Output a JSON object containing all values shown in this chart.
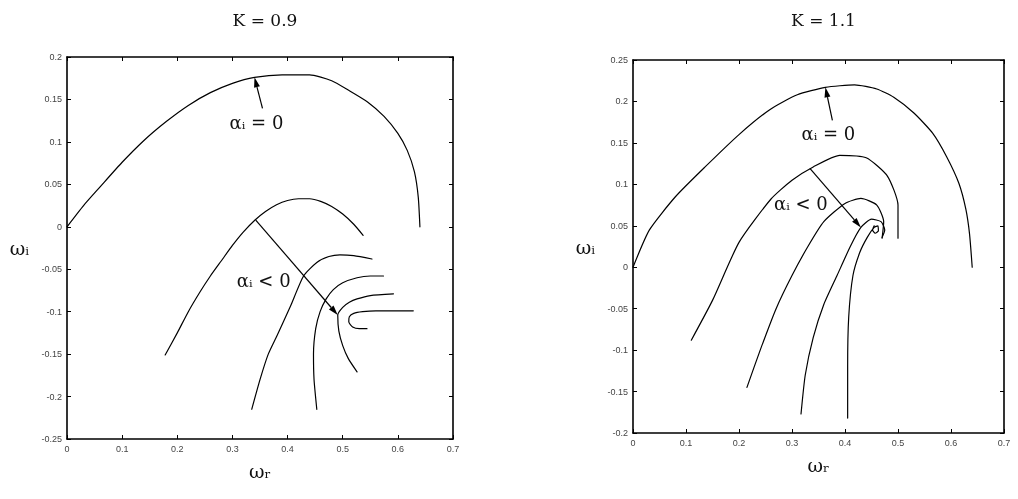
{
  "chart_data": [
    {
      "type": "line",
      "title": "K = 0.9",
      "xlabel": "ωᵣ",
      "ylabel": "ωᵢ",
      "xlim": [
        0,
        0.7
      ],
      "ylim": [
        -0.25,
        0.2
      ],
      "xticks": [
        0,
        0.1,
        0.2,
        0.3,
        0.4,
        0.5,
        0.6,
        0.7
      ],
      "yticks": [
        -0.25,
        -0.2,
        -0.15,
        -0.1,
        -0.05,
        0,
        0.05,
        0.1,
        0.15,
        0.2
      ],
      "series": [
        {
          "color": "#000000",
          "x": [
            0,
            0.03,
            0.06,
            0.1,
            0.14,
            0.18,
            0.22,
            0.26,
            0.3,
            0.34,
            0.39,
            0.44,
            0.48,
            0.51,
            0.545,
            0.575,
            0.6,
            0.617,
            0.63,
            0.637,
            0.64
          ],
          "values": [
            0,
            0.025,
            0.047,
            0.076,
            0.102,
            0.124,
            0.143,
            0.158,
            0.169,
            0.176,
            0.179,
            0.179,
            0.172,
            0.161,
            0.147,
            0.13,
            0.11,
            0.09,
            0.065,
            0.035,
            0
          ]
        },
        {
          "color": "#000000",
          "x": [
            0.178,
            0.2,
            0.22,
            0.24,
            0.26,
            0.28,
            0.3,
            0.32,
            0.341,
            0.36,
            0.38,
            0.4,
            0.42,
            0.44,
            0.46,
            0.48,
            0.5,
            0.52,
            0.537
          ],
          "values": [
            -0.151,
            -0.125,
            -0.1,
            -0.078,
            -0.058,
            -0.04,
            -0.022,
            -0.006,
            0.008,
            0.018,
            0.026,
            0.031,
            0.033,
            0.033,
            0.03,
            0.024,
            0.015,
            0.003,
            -0.01
          ]
        },
        {
          "color": "#000000",
          "x": [
            0.335,
            0.35,
            0.365,
            0.381,
            0.405,
            0.429,
            0.453,
            0.475,
            0.495,
            0.52,
            0.553
          ],
          "values": [
            -0.215,
            -0.18,
            -0.15,
            -0.128,
            -0.094,
            -0.058,
            -0.042,
            -0.035,
            -0.033,
            -0.034,
            -0.038
          ]
        },
        {
          "color": "#000000",
          "x": [
            0.453,
            0.448,
            0.447,
            0.451,
            0.459,
            0.47,
            0.483,
            0.5,
            0.526,
            0.55,
            0.574
          ],
          "values": [
            -0.215,
            -0.18,
            -0.15,
            -0.12,
            -0.1,
            -0.085,
            -0.074,
            -0.066,
            -0.06,
            -0.058,
            -0.058
          ]
        },
        {
          "color": "#000000",
          "x": [
            0.526,
            0.51,
            0.5,
            0.493,
            0.491,
            0.5,
            0.512,
            0.526,
            0.55,
            0.592
          ],
          "values": [
            -0.171,
            -0.155,
            -0.14,
            -0.123,
            -0.104,
            -0.095,
            -0.089,
            -0.085,
            -0.081,
            -0.079
          ]
        },
        {
          "color": "#000000",
          "x": [
            0.544,
            0.53,
            0.518,
            0.511,
            0.512,
            0.52,
            0.536,
            0.56,
            0.628
          ],
          "values": [
            -0.12,
            -0.12,
            -0.118,
            -0.112,
            -0.106,
            -0.102,
            -0.1,
            -0.099,
            -0.099
          ]
        }
      ],
      "annotations": [
        {
          "text": "αᵢ = 0",
          "x": 0.34,
          "y": 0.176
        },
        {
          "text": "αᵢ < 0",
          "x": 0.491,
          "y": -0.104
        }
      ]
    },
    {
      "type": "line",
      "title": "K = 1.1",
      "xlabel": "ωᵣ",
      "ylabel": "ωᵢ",
      "xlim": [
        0,
        0.7
      ],
      "ylim": [
        -0.2,
        0.25
      ],
      "xticks": [
        0,
        0.1,
        0.2,
        0.3,
        0.4,
        0.5,
        0.6,
        0.7
      ],
      "yticks": [
        -0.2,
        -0.15,
        -0.1,
        -0.05,
        0,
        0.05,
        0.1,
        0.15,
        0.2,
        0.25
      ],
      "series": [
        {
          "color": "#000000",
          "x": [
            0,
            0.031,
            0.08,
            0.136,
            0.2,
            0.258,
            0.31,
            0.363,
            0.418,
            0.46,
            0.492,
            0.53,
            0.565,
            0.592,
            0.615,
            0.628,
            0.635,
            0.64
          ],
          "values": [
            0,
            0.045,
            0.085,
            0.121,
            0.16,
            0.19,
            0.208,
            0.217,
            0.22,
            0.215,
            0.205,
            0.186,
            0.162,
            0.133,
            0.101,
            0.07,
            0.04,
            0
          ]
        },
        {
          "color": "#000000",
          "x": [
            0.11,
            0.15,
            0.2,
            0.26,
            0.3,
            0.34,
            0.39,
            0.44,
            0.48,
            0.5,
            0.5
          ],
          "values": [
            -0.088,
            -0.04,
            0.03,
            0.082,
            0.105,
            0.121,
            0.135,
            0.132,
            0.11,
            0.075,
            0.035
          ]
        },
        {
          "color": "#000000",
          "x": [
            0.215,
            0.24,
            0.27,
            0.3,
            0.33,
            0.36,
            0.4,
            0.43,
            0.46,
            0.473,
            0.47
          ],
          "values": [
            -0.145,
            -0.1,
            -0.05,
            -0.01,
            0.025,
            0.055,
            0.077,
            0.083,
            0.075,
            0.055,
            0.035
          ]
        },
        {
          "color": "#000000",
          "x": [
            0.317,
            0.325,
            0.34,
            0.36,
            0.385,
            0.41,
            0.43,
            0.45,
            0.468,
            0.475,
            0.47
          ],
          "values": [
            -0.177,
            -0.13,
            -0.085,
            -0.045,
            -0.01,
            0.025,
            0.048,
            0.058,
            0.055,
            0.045,
            0.036
          ]
        },
        {
          "color": "#000000",
          "x": [
            0.405,
            0.405,
            0.407,
            0.415,
            0.428,
            0.442,
            0.455,
            0.462,
            0.463,
            0.457,
            0.452,
            0.455
          ],
          "values": [
            -0.182,
            -0.12,
            -0.06,
            -0.01,
            0.018,
            0.036,
            0.048,
            0.05,
            0.044,
            0.041,
            0.045,
            0.05
          ]
        }
      ],
      "annotations": [
        {
          "text": "αᵢ = 0",
          "x": 0.363,
          "y": 0.217
        },
        {
          "text": "αᵢ < 0",
          "x": 0.43,
          "y": 0.048
        }
      ]
    }
  ]
}
